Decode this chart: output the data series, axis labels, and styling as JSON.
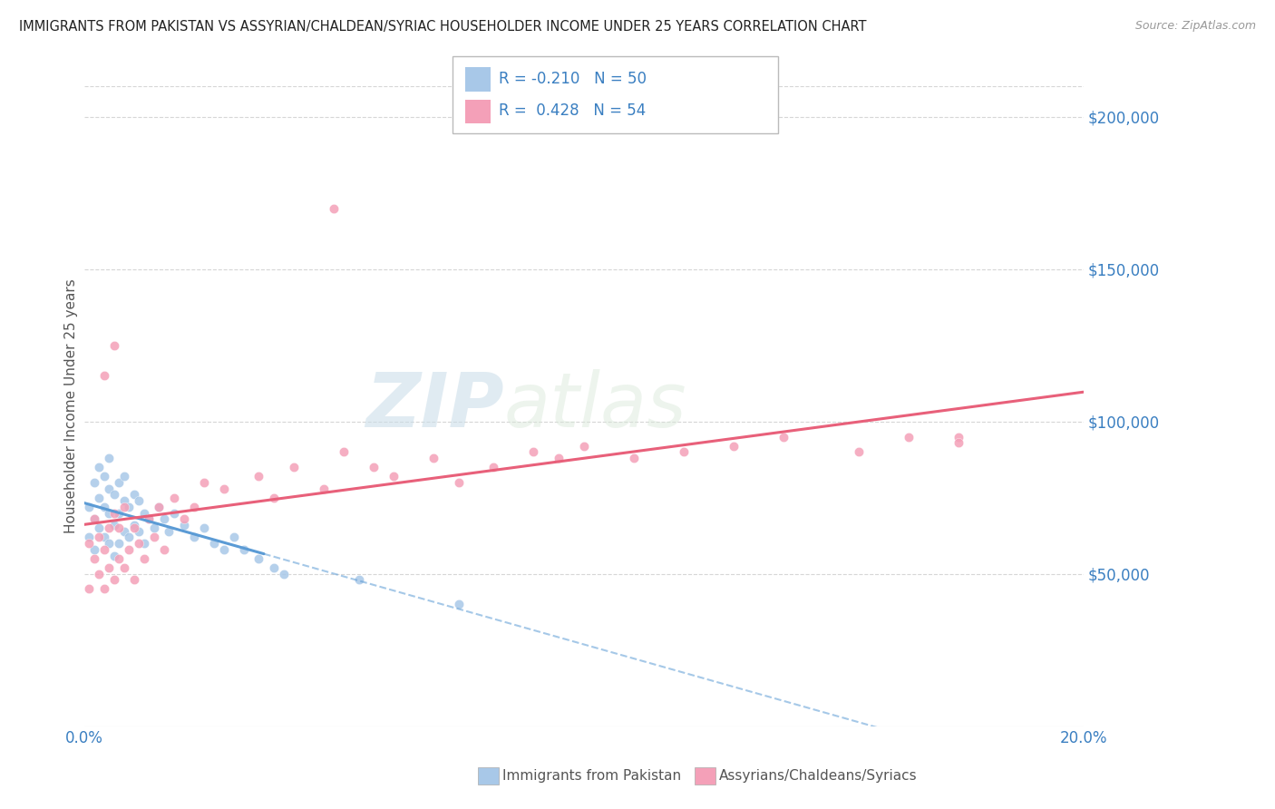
{
  "title": "IMMIGRANTS FROM PAKISTAN VS ASSYRIAN/CHALDEAN/SYRIAC HOUSEHOLDER INCOME UNDER 25 YEARS CORRELATION CHART",
  "source": "Source: ZipAtlas.com",
  "ylabel": "Householder Income Under 25 years",
  "legend_label1": "Immigrants from Pakistan",
  "legend_label2": "Assyrians/Chaldeans/Syriacs",
  "r1": -0.21,
  "n1": 50,
  "r2": 0.428,
  "n2": 54,
  "color1": "#a8c8e8",
  "color2": "#f4a0b8",
  "line1_color": "#5b9bd5",
  "line2_color": "#e8607a",
  "watermark_zip": "ZIP",
  "watermark_atlas": "atlas",
  "xlim": [
    0.0,
    0.2
  ],
  "ylim": [
    0,
    210000
  ],
  "yticks": [
    50000,
    100000,
    150000,
    200000
  ],
  "ytick_labels": [
    "$50,000",
    "$100,000",
    "$150,000",
    "$200,000"
  ],
  "pakistan_x": [
    0.001,
    0.001,
    0.002,
    0.002,
    0.002,
    0.003,
    0.003,
    0.003,
    0.004,
    0.004,
    0.004,
    0.005,
    0.005,
    0.005,
    0.005,
    0.006,
    0.006,
    0.006,
    0.007,
    0.007,
    0.007,
    0.008,
    0.008,
    0.008,
    0.009,
    0.009,
    0.01,
    0.01,
    0.011,
    0.011,
    0.012,
    0.012,
    0.013,
    0.014,
    0.015,
    0.016,
    0.017,
    0.018,
    0.02,
    0.022,
    0.024,
    0.026,
    0.028,
    0.03,
    0.032,
    0.035,
    0.038,
    0.04,
    0.055,
    0.075
  ],
  "pakistan_y": [
    72000,
    62000,
    80000,
    68000,
    58000,
    85000,
    75000,
    65000,
    82000,
    72000,
    62000,
    78000,
    70000,
    60000,
    88000,
    76000,
    66000,
    56000,
    80000,
    70000,
    60000,
    74000,
    64000,
    82000,
    72000,
    62000,
    76000,
    66000,
    74000,
    64000,
    70000,
    60000,
    68000,
    65000,
    72000,
    68000,
    64000,
    70000,
    66000,
    62000,
    65000,
    60000,
    58000,
    62000,
    58000,
    55000,
    52000,
    50000,
    48000,
    40000
  ],
  "assyrian_x": [
    0.001,
    0.001,
    0.002,
    0.002,
    0.003,
    0.003,
    0.004,
    0.004,
    0.005,
    0.005,
    0.006,
    0.006,
    0.007,
    0.007,
    0.008,
    0.008,
    0.009,
    0.01,
    0.01,
    0.011,
    0.012,
    0.013,
    0.014,
    0.015,
    0.016,
    0.018,
    0.02,
    0.022,
    0.024,
    0.028,
    0.035,
    0.038,
    0.042,
    0.048,
    0.052,
    0.058,
    0.062,
    0.07,
    0.075,
    0.082,
    0.09,
    0.095,
    0.1,
    0.11,
    0.12,
    0.13,
    0.14,
    0.155,
    0.165,
    0.175,
    0.004,
    0.006,
    0.05,
    0.175
  ],
  "assyrian_y": [
    60000,
    45000,
    55000,
    68000,
    50000,
    62000,
    58000,
    45000,
    65000,
    52000,
    48000,
    70000,
    55000,
    65000,
    52000,
    72000,
    58000,
    48000,
    65000,
    60000,
    55000,
    68000,
    62000,
    72000,
    58000,
    75000,
    68000,
    72000,
    80000,
    78000,
    82000,
    75000,
    85000,
    78000,
    90000,
    85000,
    82000,
    88000,
    80000,
    85000,
    90000,
    88000,
    92000,
    88000,
    90000,
    92000,
    95000,
    90000,
    95000,
    95000,
    115000,
    125000,
    170000,
    93000
  ]
}
